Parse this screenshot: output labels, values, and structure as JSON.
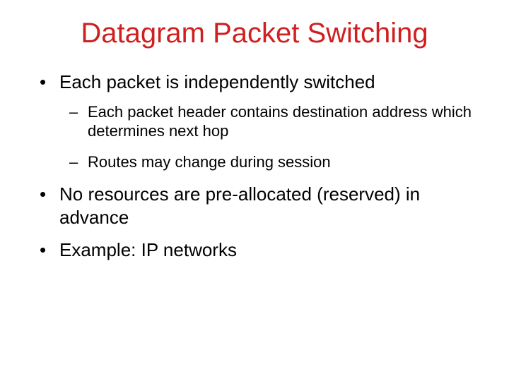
{
  "slide": {
    "title": "Datagram Packet Switching",
    "title_color": "#d01f1f",
    "body_color": "#000000",
    "background_color": "#ffffff",
    "title_fontsize": 40,
    "lvl1_fontsize": 26,
    "lvl2_fontsize": 22,
    "bullets": [
      {
        "text": "Each packet is independently switched",
        "sub": [
          "Each packet header contains destination address which determines next hop",
          "Routes may change during session"
        ]
      },
      {
        "text": "No resources are pre-allocated (reserved) in advance",
        "sub": []
      },
      {
        "text": "Example: IP networks",
        "sub": []
      }
    ]
  }
}
